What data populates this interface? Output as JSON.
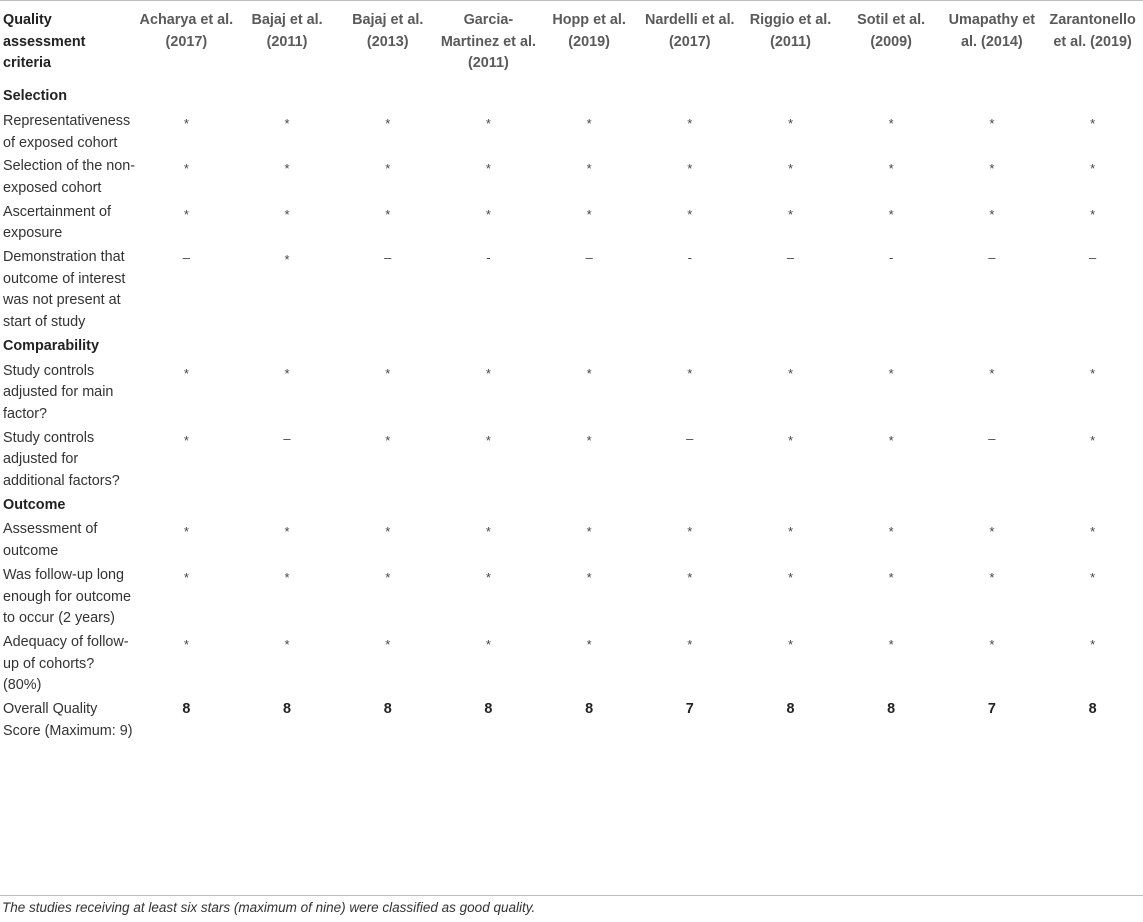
{
  "table": {
    "criteria_header": "Quality assessment criteria",
    "studies": [
      "Acharya et al. (2017)",
      "Bajaj et al. (2011)",
      "Bajaj et al. (2013)",
      "Garcia-Martinez et al. (2011)",
      "Hopp et al. (2019)",
      "Nardelli et al. (2017)",
      "Riggio et al. (2011)",
      "Sotil et al. (2009)",
      "Umapathy et al. (2014)",
      "Zarantonello et al. (2019)"
    ],
    "sections": [
      {
        "title": "Selection",
        "rows": [
          {
            "label": "Representativeness of exposed cohort",
            "values": [
              "*",
              "*",
              "*",
              "*",
              "*",
              "*",
              "*",
              "*",
              "*",
              "*"
            ]
          },
          {
            "label": "Selection of the non-exposed cohort",
            "values": [
              "*",
              "*",
              "*",
              "*",
              "*",
              "*",
              "*",
              "*",
              "*",
              "*"
            ]
          },
          {
            "label": "Ascertainment of exposure",
            "values": [
              "*",
              "*",
              "*",
              "*",
              "*",
              "*",
              "*",
              "*",
              "*",
              "*"
            ]
          },
          {
            "label": "Demonstration that outcome of interest was not present at start of study",
            "values": [
              "–",
              "*",
              "–",
              "-",
              "–",
              "-",
              "–",
              "-",
              "–",
              "–"
            ]
          }
        ]
      },
      {
        "title": "Comparability",
        "rows": [
          {
            "label": "Study controls adjusted for main factor?",
            "values": [
              "*",
              "*",
              "*",
              "*",
              "*",
              "*",
              "*",
              "*",
              "*",
              "*"
            ]
          },
          {
            "label": "Study controls adjusted for additional factors?",
            "values": [
              "*",
              "–",
              "*",
              "*",
              "*",
              "–",
              "*",
              "*",
              "–",
              "*"
            ]
          }
        ]
      },
      {
        "title": "Outcome",
        "rows": [
          {
            "label": "Assessment of outcome",
            "values": [
              "*",
              "*",
              "*",
              "*",
              "*",
              "*",
              "*",
              "*",
              "*",
              "*"
            ]
          },
          {
            "label": "Was follow-up long enough for outcome to occur (2 years)",
            "values": [
              "*",
              "*",
              "*",
              "*",
              "*",
              "*",
              "*",
              "*",
              "*",
              "*"
            ]
          },
          {
            "label": "Adequacy of follow-up of cohorts? (80%)",
            "values": [
              "*",
              "*",
              "*",
              "*",
              "*",
              "*",
              "*",
              "*",
              "*",
              "*"
            ]
          }
        ]
      }
    ],
    "overall": {
      "label": "Overall Quality Score (Maximum: 9)",
      "values": [
        "8",
        "8",
        "8",
        "8",
        "8",
        "7",
        "8",
        "8",
        "7",
        "8"
      ]
    }
  },
  "footnote": "The studies receiving at least six stars (maximum of nine) were classified as good quality."
}
